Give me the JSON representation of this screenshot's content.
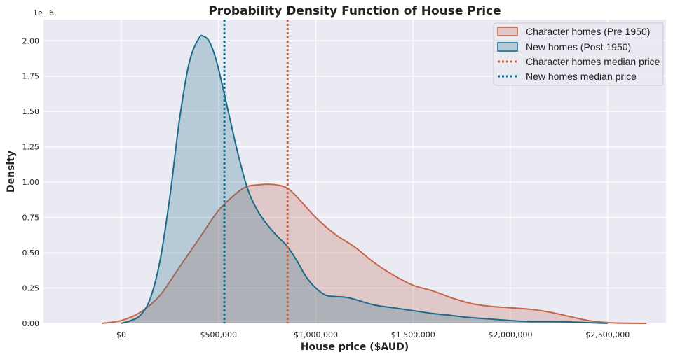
{
  "chart_data": {
    "type": "area",
    "title": "Probability Density Function of House Price",
    "xlabel": "House price ($AUD)",
    "ylabel": "Density",
    "y_offset_label": "1e−6",
    "xlim": [
      -400000,
      2800000
    ],
    "ylim": [
      0,
      2.15
    ],
    "x_ticks": [
      0,
      500000,
      1000000,
      1500000,
      2000000,
      2500000
    ],
    "x_tick_labels": [
      "$0",
      "$500,000",
      "$1,000,000",
      "$1,500,000",
      "$2,000,000",
      "$2,500,000"
    ],
    "y_ticks": [
      0,
      0.25,
      0.5,
      0.75,
      1.0,
      1.25,
      1.5,
      1.75,
      2.0
    ],
    "y_tick_labels": [
      "0.00",
      "0.25",
      "0.50",
      "0.75",
      "1.00",
      "1.25",
      "1.50",
      "1.75",
      "2.00"
    ],
    "grid": true,
    "legend_position": "top-right",
    "series": [
      {
        "name": "Character homes (Pre 1950)",
        "color": "#c8654a",
        "x": [
          -100000,
          0,
          100000,
          200000,
          300000,
          400000,
          500000,
          600000,
          650000,
          700000,
          750000,
          800000,
          850000,
          900000,
          1000000,
          1100000,
          1200000,
          1300000,
          1400000,
          1500000,
          1600000,
          1700000,
          1800000,
          1900000,
          2000000,
          2100000,
          2200000,
          2300000,
          2400000,
          2500000,
          2600000,
          2700000
        ],
        "y": [
          0.0,
          0.02,
          0.08,
          0.2,
          0.4,
          0.6,
          0.8,
          0.93,
          0.97,
          0.98,
          0.985,
          0.98,
          0.96,
          0.9,
          0.75,
          0.63,
          0.54,
          0.43,
          0.34,
          0.27,
          0.23,
          0.18,
          0.14,
          0.12,
          0.11,
          0.1,
          0.08,
          0.05,
          0.02,
          0.005,
          0.001,
          0.0
        ]
      },
      {
        "name": "New homes (Post 1950)",
        "color": "#1a6a8a",
        "x": [
          0,
          50000,
          100000,
          150000,
          200000,
          250000,
          300000,
          350000,
          400000,
          425000,
          450000,
          475000,
          500000,
          550000,
          600000,
          650000,
          700000,
          750000,
          800000,
          850000,
          900000,
          950000,
          1000000,
          1050000,
          1100000,
          1150000,
          1200000,
          1300000,
          1400000,
          1500000,
          1600000,
          1700000,
          1800000,
          1900000,
          2000000,
          2100000,
          2200000,
          2300000,
          2400000,
          2500000
        ],
        "y": [
          0.0,
          0.02,
          0.06,
          0.18,
          0.45,
          0.9,
          1.45,
          1.85,
          2.02,
          2.03,
          2.0,
          1.92,
          1.8,
          1.5,
          1.2,
          0.95,
          0.8,
          0.7,
          0.62,
          0.55,
          0.45,
          0.33,
          0.25,
          0.2,
          0.19,
          0.185,
          0.17,
          0.13,
          0.11,
          0.09,
          0.07,
          0.055,
          0.04,
          0.03,
          0.02,
          0.012,
          0.012,
          0.01,
          0.005,
          0.0
        ]
      }
    ],
    "median_lines": [
      {
        "name": "Character homes median price",
        "x": 855000,
        "color": "#c8654a"
      },
      {
        "name": "New homes median price",
        "x": 530000,
        "color": "#1a6a8a"
      }
    ]
  }
}
